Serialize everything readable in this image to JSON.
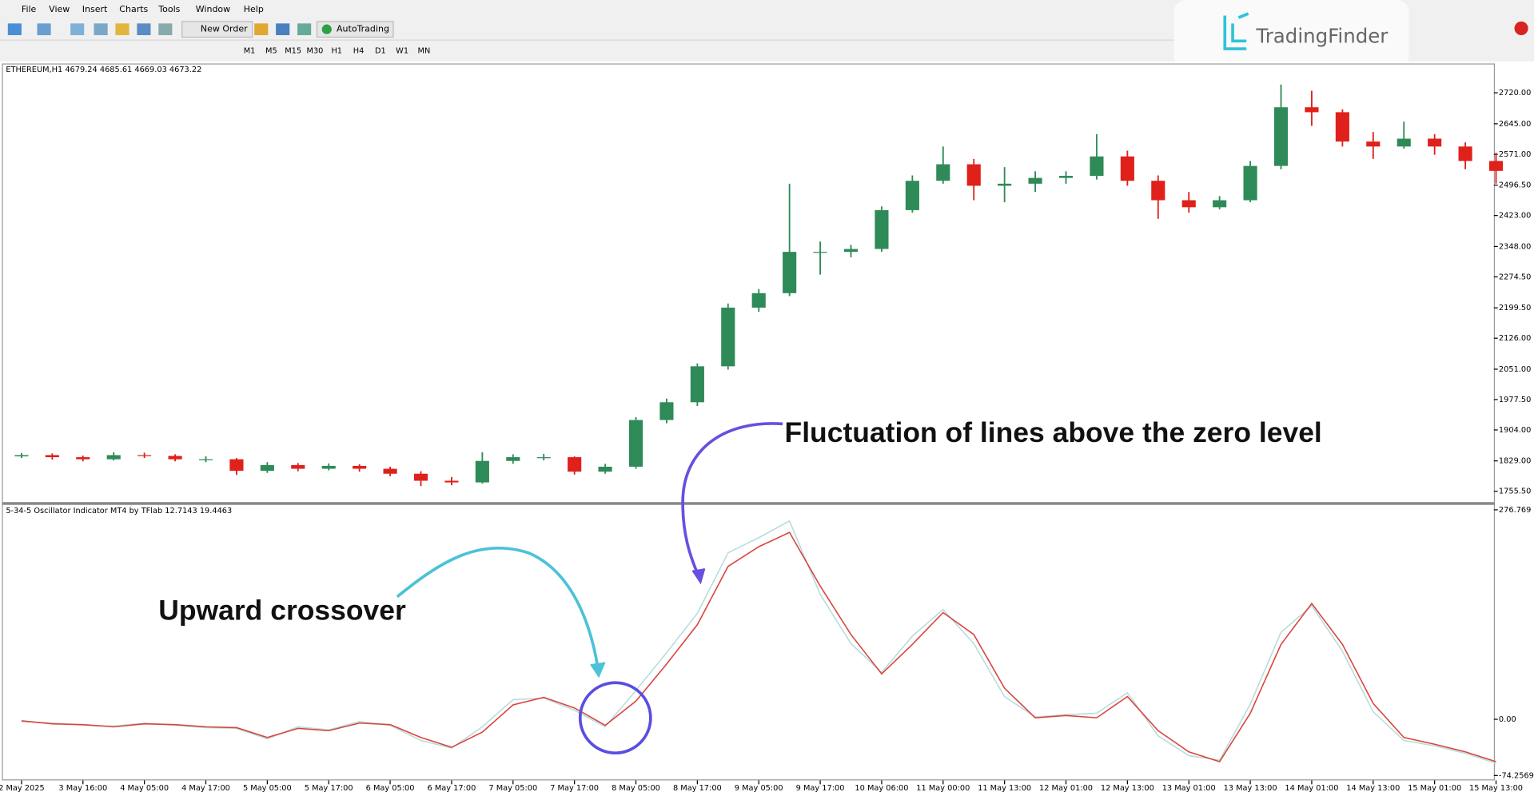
{
  "menu": [
    "File",
    "View",
    "Insert",
    "Charts",
    "Tools",
    "Window",
    "Help"
  ],
  "toolbar": {
    "new_order": "New Order",
    "autotrading": "AutoTrading",
    "timeframes": [
      "M1",
      "M5",
      "M15",
      "M30",
      "H1",
      "H4",
      "D1",
      "W1",
      "MN"
    ]
  },
  "logo": "TradingFinder",
  "annotations": {
    "crossover": "Upward crossover",
    "fluctuation": "Fluctuation of lines above the zero level"
  },
  "chart_data": [
    {
      "type": "candlestick",
      "title": "ETHEREUM,H1  4679.24 4685.61 4669.03 4673.22",
      "up_color": "#2e8b57",
      "down_color": "#e0201b",
      "open": [
        1840,
        1843,
        1838,
        1833,
        1843,
        1841,
        1833,
        1833,
        1805,
        1819,
        1810,
        1817,
        1810,
        1798,
        1781,
        1777,
        1829,
        1838,
        1838,
        1803,
        1815,
        1928,
        1971,
        2058,
        2200,
        2235,
        2335,
        2335,
        2342,
        2436,
        2507,
        2547,
        2495,
        2500,
        2514,
        2519,
        2566,
        2507,
        2460,
        2443,
        2460,
        2543,
        2685,
        2673,
        2602,
        2590,
        2609,
        2590,
        2555
      ],
      "high": [
        1848,
        1847,
        1842,
        1850,
        1849,
        1845,
        1840,
        1836,
        1826,
        1824,
        1823,
        1821,
        1815,
        1804,
        1790,
        1850,
        1845,
        1846,
        1840,
        1822,
        1935,
        1980,
        2065,
        2210,
        2245,
        2500,
        2360,
        2352,
        2445,
        2520,
        2590,
        2560,
        2540,
        2530,
        2530,
        2620,
        2580,
        2520,
        2480,
        2470,
        2555,
        2740,
        2725,
        2680,
        2625,
        2650,
        2620,
        2600,
        2575
      ],
      "low": [
        1836,
        1832,
        1828,
        1830,
        1836,
        1828,
        1826,
        1795,
        1800,
        1804,
        1806,
        1803,
        1792,
        1768,
        1770,
        1774,
        1822,
        1830,
        1796,
        1798,
        1810,
        1920,
        1962,
        2050,
        2190,
        2228,
        2280,
        2322,
        2335,
        2430,
        2500,
        2460,
        2455,
        2480,
        2500,
        2510,
        2495,
        2415,
        2430,
        2438,
        2455,
        2535,
        2640,
        2590,
        2560,
        2585,
        2570,
        2535,
        2500
      ],
      "close": [
        1843,
        1838,
        1833,
        1843,
        1841,
        1833,
        1833,
        1805,
        1819,
        1810,
        1817,
        1810,
        1798,
        1781,
        1777,
        1829,
        1838,
        1838,
        1803,
        1815,
        1928,
        1971,
        2058,
        2200,
        2235,
        2335,
        2335,
        2342,
        2436,
        2507,
        2547,
        2495,
        2500,
        2514,
        2519,
        2566,
        2507,
        2460,
        2443,
        2460,
        2543,
        2685,
        2673,
        2602,
        2590,
        2609,
        2590,
        2555,
        2531
      ],
      "ylim": [
        1729.5,
        2788.6
      ],
      "yticks": [
        {
          "value": 2720,
          "label": "2720.00"
        },
        {
          "value": 2645,
          "label": "2645.00"
        },
        {
          "value": 2571,
          "label": "2571.00"
        },
        {
          "value": 2496.5,
          "label": "2496.50"
        },
        {
          "value": 2423,
          "label": "2423.00"
        },
        {
          "value": 2348,
          "label": "2348.00"
        },
        {
          "value": 2274.5,
          "label": "2274.50"
        },
        {
          "value": 2199.5,
          "label": "2199.50"
        },
        {
          "value": 2126,
          "label": "2126.00"
        },
        {
          "value": 2051,
          "label": "2051.00"
        },
        {
          "value": 1977.5,
          "label": "1977.50"
        },
        {
          "value": 1904,
          "label": "1904.00"
        },
        {
          "value": 1829,
          "label": "1829.00"
        },
        {
          "value": 1755.5,
          "label": "1755.50"
        }
      ]
    },
    {
      "type": "line",
      "title": "5-34-5 Oscillator Indicator MT4 by TFlab 12.7143 19.4463",
      "categories": [
        "2 May 2025",
        null,
        "3 May 16:00",
        null,
        "4 May 05:00",
        null,
        "4 May 17:00",
        null,
        "5 May 05:00",
        null,
        "5 May 17:00",
        null,
        "6 May 05:00",
        null,
        "6 May 17:00",
        null,
        "7 May 05:00",
        null,
        "7 May 17:00",
        null,
        "8 May 05:00",
        null,
        "8 May 17:00",
        null,
        "9 May 05:00",
        null,
        "9 May 17:00",
        null,
        "10 May 06:00",
        null,
        "11 May 00:00",
        null,
        "11 May 13:00",
        null,
        "12 May 01:00",
        null,
        "12 May 13:00",
        null,
        "13 May 01:00",
        null,
        "13 May 13:00",
        null,
        "14 May 01:00",
        null,
        "14 May 13:00",
        null,
        "15 May 01:00",
        null,
        "15 May 13:00"
      ],
      "series": [
        {
          "color": "#b9dcdc",
          "values": [
            -3,
            -5,
            -8,
            -9,
            -5,
            -8,
            -11,
            -12,
            -26,
            -10,
            -14,
            -3,
            -8,
            -28,
            -38,
            -10,
            26,
            28,
            12,
            -10,
            38,
            88,
            140,
            220,
            240,
            262,
            165,
            100,
            62,
            110,
            145,
            100,
            30,
            3,
            6,
            8,
            35,
            -22,
            -48,
            -54,
            20,
            115,
            150,
            90,
            10,
            -28,
            -35,
            -45,
            -58
          ]
        },
        {
          "color": "#d9453e",
          "values": [
            -2,
            -6,
            -7,
            -10,
            -6,
            -7,
            -10,
            -11,
            -24,
            -12,
            -15,
            -5,
            -7,
            -24,
            -37,
            -17,
            19,
            29,
            15,
            -8,
            24,
            73,
            125,
            202,
            228,
            247,
            176,
            112,
            60,
            99,
            141,
            112,
            41,
            2,
            5,
            2,
            30,
            -15,
            -43,
            -56,
            8,
            99,
            153,
            99,
            21,
            -24,
            -33,
            -43,
            -56
          ]
        }
      ],
      "ylim": [
        -74.2569,
        276.769
      ],
      "yticks": [
        276.769,
        {
          "value": 0,
          "label": "0.00"
        },
        -74.2569
      ]
    }
  ]
}
